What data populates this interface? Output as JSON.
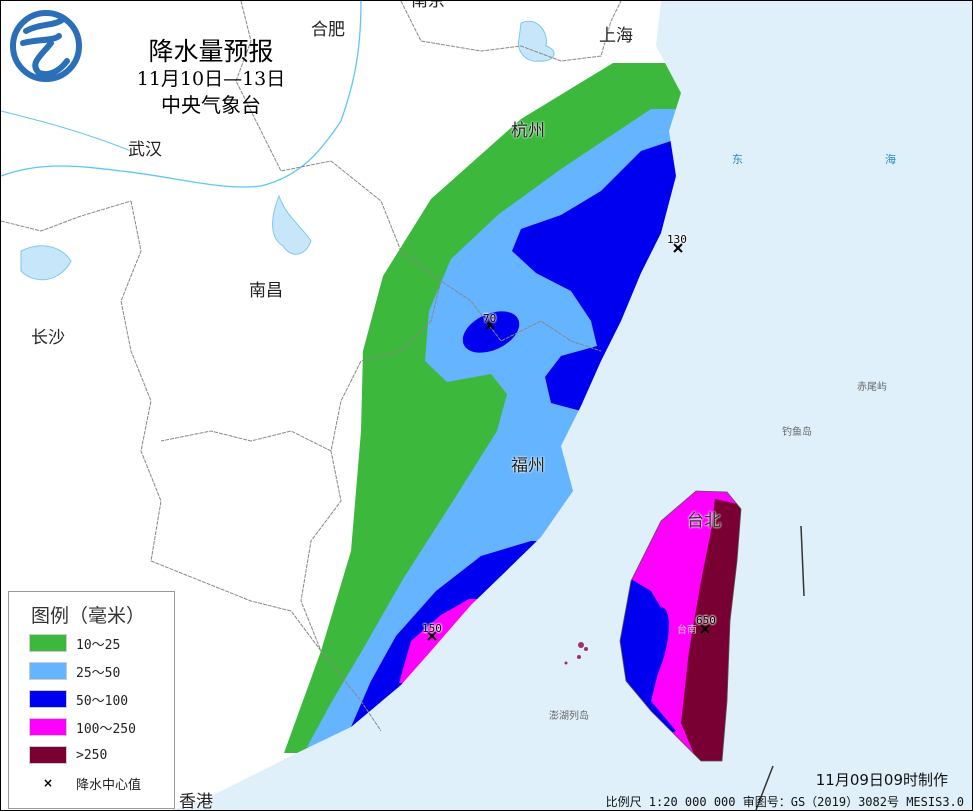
{
  "title": {
    "main": "降水量预报",
    "period": "11月10日—13日",
    "issuer": "中央气象台"
  },
  "logo": {
    "icon": "cma-logo-icon",
    "color": "#2a6fb8"
  },
  "cities": {
    "nanjing": "南京",
    "hefei": "合肥",
    "shanghai": "上海",
    "hangzhou": "杭州",
    "wuhan": "武汉",
    "nanchang": "南昌",
    "changsha": "长沙",
    "fuzhou": "福州",
    "taipei": "台北",
    "tainan": "台南",
    "hongkong": "香港"
  },
  "sea": {
    "dong": "东",
    "hai": "海"
  },
  "islands": {
    "chiweiyu": "赤尾屿",
    "diaoyudao": "钓鱼岛",
    "penghu": "澎湖列岛"
  },
  "rain_centers": [
    {
      "value": "130"
    },
    {
      "value": "70"
    },
    {
      "value": "150"
    },
    {
      "value": "650"
    }
  ],
  "legend": {
    "title": "图例（毫米）",
    "items": [
      {
        "label": "10～25",
        "color": "#3cb83c"
      },
      {
        "label": "25～50",
        "color": "#64b4ff"
      },
      {
        "label": "50～100",
        "color": "#0000f0"
      },
      {
        "label": "100～250",
        "color": "#ff00ff"
      },
      {
        "label": ">250",
        "color": "#780032"
      }
    ],
    "center_marker": {
      "symbol": "×",
      "label": "降水中心值"
    }
  },
  "colors": {
    "sea": "#dff0fb",
    "land": "#ffffff",
    "boundary": "#888888",
    "river": "#5cc8f0"
  },
  "footer": {
    "made": "11月09日09时制作",
    "scale": "比例尺 1:20 000 000  审图号：GS（2019）3082号 MESIS3.0"
  }
}
